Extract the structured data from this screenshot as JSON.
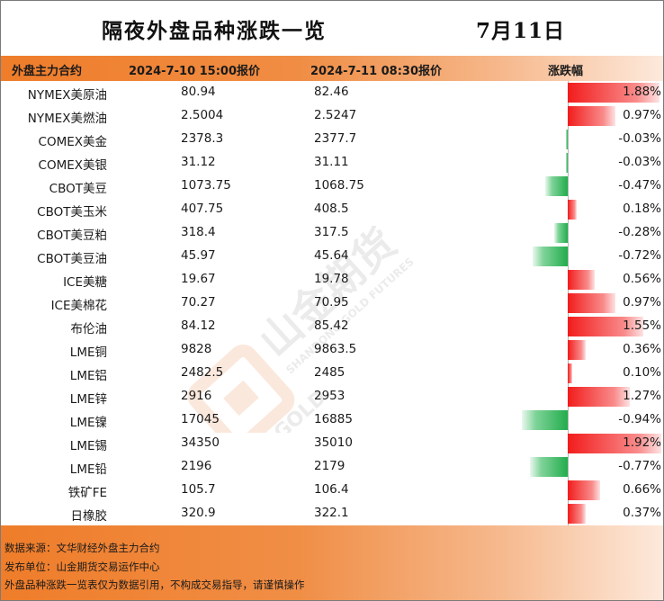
{
  "title": "隔夜外盘品种涨跌一览",
  "date": "7月11日",
  "header": {
    "name": "外盘主力合约",
    "price1": "2024-7-10 15:00报价",
    "price2": "2024-7-11 08:30报价",
    "change": "涨跌幅"
  },
  "rows": [
    {
      "name": "NYMEX美原油",
      "p1": "80.94",
      "p2": "82.46",
      "chg": "1.88%",
      "pct": 1.88
    },
    {
      "name": "NYMEX美燃油",
      "p1": "2.5004",
      "p2": "2.5247",
      "chg": "0.97%",
      "pct": 0.97
    },
    {
      "name": "COMEX美金",
      "p1": "2378.3",
      "p2": "2377.7",
      "chg": "-0.03%",
      "pct": -0.03
    },
    {
      "name": "COMEX美银",
      "p1": "31.12",
      "p2": "31.11",
      "chg": "-0.03%",
      "pct": -0.03
    },
    {
      "name": "CBOT美豆",
      "p1": "1073.75",
      "p2": "1068.75",
      "chg": "-0.47%",
      "pct": -0.47
    },
    {
      "name": "CBOT美玉米",
      "p1": "407.75",
      "p2": "408.5",
      "chg": "0.18%",
      "pct": 0.18
    },
    {
      "name": "CBOT美豆粕",
      "p1": "318.4",
      "p2": "317.5",
      "chg": "-0.28%",
      "pct": -0.28
    },
    {
      "name": "CBOT美豆油",
      "p1": "45.97",
      "p2": "45.64",
      "chg": "-0.72%",
      "pct": -0.72
    },
    {
      "name": "ICE美糖",
      "p1": "19.67",
      "p2": "19.78",
      "chg": "0.56%",
      "pct": 0.56
    },
    {
      "name": "ICE美棉花",
      "p1": "70.27",
      "p2": "70.95",
      "chg": "0.97%",
      "pct": 0.97
    },
    {
      "name": "布伦油",
      "p1": "84.12",
      "p2": "85.42",
      "chg": "1.55%",
      "pct": 1.55
    },
    {
      "name": "LME铜",
      "p1": "9828",
      "p2": "9863.5",
      "chg": "0.36%",
      "pct": 0.36
    },
    {
      "name": "LME铝",
      "p1": "2482.5",
      "p2": "2485",
      "chg": "0.10%",
      "pct": 0.1
    },
    {
      "name": "LME锌",
      "p1": "2916",
      "p2": "2953",
      "chg": "1.27%",
      "pct": 1.27
    },
    {
      "name": "LME镍",
      "p1": "17045",
      "p2": "16885",
      "chg": "-0.94%",
      "pct": -0.94
    },
    {
      "name": "LME锡",
      "p1": "34350",
      "p2": "35010",
      "chg": "1.92%",
      "pct": 1.92
    },
    {
      "name": "LME铅",
      "p1": "2196",
      "p2": "2179",
      "chg": "-0.77%",
      "pct": -0.77
    },
    {
      "name": "铁矿FE",
      "p1": "105.7",
      "p2": "106.4",
      "chg": "0.66%",
      "pct": 0.66
    },
    {
      "name": "日橡胶",
      "p1": "320.9",
      "p2": "322.1",
      "chg": "0.37%",
      "pct": 0.37
    }
  ],
  "colors": {
    "accent": "#ef7d2a",
    "up": "#f21c1c",
    "down": "#22ad4c"
  },
  "footer": {
    "line1": "数据来源：文华财经外盘主力合约",
    "line2": "发布单位：山金期货交易运作中心",
    "line3": "外盘品种涨跌一览表仅为数据引用，不构成交易指导，请谨慎操作"
  },
  "watermark": {
    "brand_cn": "山金期货",
    "brand_en": "SHANDONG GOLD FUTURES",
    "logo_text": "SD-GOLD"
  }
}
